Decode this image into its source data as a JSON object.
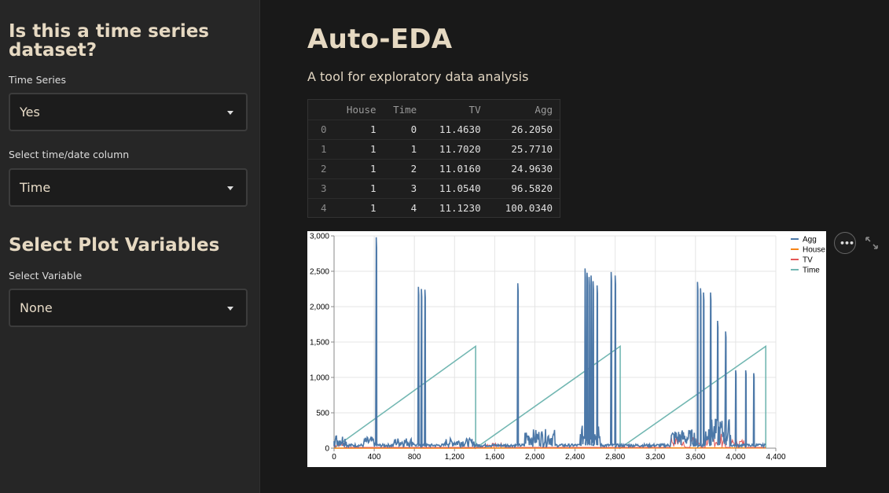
{
  "sidebar": {
    "ts_heading": "Is this a time series dataset?",
    "ts_label": "Time Series",
    "ts_value": "Yes",
    "date_label": "Select time/date column",
    "date_value": "Time",
    "plot_heading": "Select Plot Variables",
    "var_label": "Select Variable",
    "var_value": "None"
  },
  "main": {
    "title": "Auto-EDA",
    "subtitle": "A tool for exploratory data analysis"
  },
  "dataframe": {
    "columns": [
      "House",
      "Time",
      "TV",
      "Agg"
    ],
    "rows": [
      {
        "idx": "0",
        "House": "1",
        "Time": "0",
        "TV": "11.4630",
        "Agg": "26.2050"
      },
      {
        "idx": "1",
        "House": "1",
        "Time": "1",
        "TV": "11.7020",
        "Agg": "25.7710"
      },
      {
        "idx": "2",
        "House": "1",
        "Time": "2",
        "TV": "11.0160",
        "Agg": "24.9630"
      },
      {
        "idx": "3",
        "House": "1",
        "Time": "3",
        "TV": "11.0540",
        "Agg": "96.5820"
      },
      {
        "idx": "4",
        "House": "1",
        "Time": "4",
        "TV": "11.1230",
        "Agg": "100.0340"
      }
    ]
  },
  "toolbar": {
    "more_icon": "more-horizontal-icon",
    "expand_icon": "expand-icon"
  },
  "chart_data": {
    "type": "line",
    "title": "",
    "xlabel": "",
    "ylabel": "",
    "xlim": [
      0,
      4400
    ],
    "ylim": [
      0,
      3000
    ],
    "grid": true,
    "legend_position": "right",
    "x_ticks": [
      "0",
      "400",
      "800",
      "1,200",
      "1,600",
      "2,000",
      "2,400",
      "2,800",
      "3,200",
      "3,600",
      "4,000",
      "4,400"
    ],
    "x_tick_values": [
      0,
      400,
      800,
      1200,
      1600,
      2000,
      2400,
      2800,
      3200,
      3600,
      4000,
      4400
    ],
    "y_ticks": [
      "0",
      "500",
      "1,000",
      "1,500",
      "2,000",
      "2,500",
      "3,000"
    ],
    "y_tick_values": [
      0,
      500,
      1000,
      1500,
      2000,
      2500,
      3000
    ],
    "series": [
      {
        "name": "Agg",
        "color": "#4c78a8",
        "baseline": 100,
        "end_x": 4300,
        "spikes": [
          [
            420,
            2980
          ],
          [
            840,
            2280
          ],
          [
            870,
            2250
          ],
          [
            905,
            2240
          ],
          [
            1830,
            2330
          ],
          [
            2500,
            2540
          ],
          [
            2520,
            2480
          ],
          [
            2540,
            2420
          ],
          [
            2560,
            2440
          ],
          [
            2580,
            2360
          ],
          [
            2620,
            2300
          ],
          [
            2760,
            2490
          ],
          [
            2800,
            2440
          ],
          [
            3620,
            2350
          ],
          [
            3650,
            2260
          ],
          [
            3680,
            2200
          ],
          [
            3750,
            2200
          ],
          [
            3820,
            1800
          ],
          [
            3900,
            1650
          ],
          [
            4000,
            1100
          ],
          [
            4100,
            1100
          ],
          [
            4180,
            1060
          ]
        ],
        "clusters": [
          [
            0,
            120,
            180
          ],
          [
            300,
            400,
            140
          ],
          [
            600,
            800,
            130
          ],
          [
            1100,
            1400,
            120
          ],
          [
            1900,
            2200,
            250
          ],
          [
            2450,
            2650,
            300
          ],
          [
            3350,
            3600,
            250
          ],
          [
            3700,
            3950,
            400
          ]
        ]
      },
      {
        "name": "House",
        "color": "#f58518",
        "segments": [
          [
            0,
            1410,
            1
          ],
          [
            1410,
            2850,
            2
          ],
          [
            2850,
            4300,
            3
          ]
        ]
      },
      {
        "name": "TV",
        "color": "#e45756",
        "baseline": 11,
        "bursts": [
          [
            0,
            100,
            90
          ],
          [
            1500,
            1700,
            60
          ],
          [
            3350,
            3500,
            180
          ],
          [
            3550,
            3650,
            150
          ],
          [
            3700,
            3900,
            200
          ],
          [
            3950,
            4100,
            120
          ]
        ]
      },
      {
        "name": "Time",
        "color": "#72b7b2",
        "ramps": [
          [
            0,
            1410,
            1440
          ],
          [
            1410,
            2850,
            1440
          ],
          [
            2850,
            4300,
            1440
          ]
        ]
      }
    ]
  }
}
